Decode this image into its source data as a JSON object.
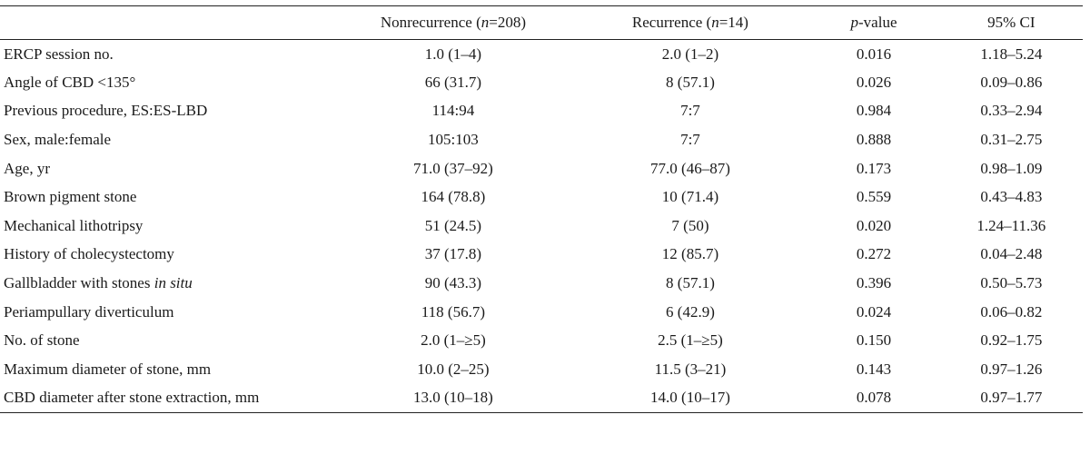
{
  "header": {
    "variable": "",
    "nonrecurrence": {
      "label": "Nonrecurrence (",
      "n_symbol": "n",
      "n_value": "=208)"
    },
    "recurrence": {
      "label": "Recurrence (",
      "n_symbol": "n",
      "n_value": "=14)"
    },
    "pvalue": {
      "p_symbol": "p",
      "suffix": "-value"
    },
    "ci": "95% CI"
  },
  "rows": [
    {
      "variable": "ERCP session no.",
      "variable_italic": "",
      "nonrecurrence": "1.0 (1–4)",
      "recurrence": "2.0 (1–2)",
      "pvalue": "0.016",
      "ci": "1.18–5.24"
    },
    {
      "variable": "Angle of CBD <135°",
      "variable_italic": "",
      "nonrecurrence": "66 (31.7)",
      "recurrence": "8 (57.1)",
      "pvalue": "0.026",
      "ci": "0.09–0.86"
    },
    {
      "variable": "Previous procedure, ES:ES-LBD",
      "variable_italic": "",
      "nonrecurrence": "114:94",
      "recurrence": "7:7",
      "pvalue": "0.984",
      "ci": "0.33–2.94"
    },
    {
      "variable": "Sex, male:female",
      "variable_italic": "",
      "nonrecurrence": "105:103",
      "recurrence": "7:7",
      "pvalue": "0.888",
      "ci": "0.31–2.75"
    },
    {
      "variable": "Age, yr",
      "variable_italic": "",
      "nonrecurrence": "71.0 (37–92)",
      "recurrence": "77.0 (46–87)",
      "pvalue": "0.173",
      "ci": "0.98–1.09"
    },
    {
      "variable": "Brown pigment stone",
      "variable_italic": "",
      "nonrecurrence": "164 (78.8)",
      "recurrence": "10 (71.4)",
      "pvalue": "0.559",
      "ci": "0.43–4.83"
    },
    {
      "variable": "Mechanical lithotripsy",
      "variable_italic": "",
      "nonrecurrence": "51 (24.5)",
      "recurrence": "7 (50)",
      "pvalue": "0.020",
      "ci": "1.24–11.36"
    },
    {
      "variable": "History of cholecystectomy",
      "variable_italic": "",
      "nonrecurrence": "37 (17.8)",
      "recurrence": "12 (85.7)",
      "pvalue": "0.272",
      "ci": "0.04–2.48"
    },
    {
      "variable": "Gallbladder with stones ",
      "variable_italic": "in situ",
      "nonrecurrence": "90 (43.3)",
      "recurrence": "8 (57.1)",
      "pvalue": "0.396",
      "ci": "0.50–5.73"
    },
    {
      "variable": "Periampullary diverticulum",
      "variable_italic": "",
      "nonrecurrence": "118 (56.7)",
      "recurrence": "6 (42.9)",
      "pvalue": "0.024",
      "ci": "0.06–0.82"
    },
    {
      "variable": "No. of stone",
      "variable_italic": "",
      "nonrecurrence": "2.0 (1–≥5)",
      "recurrence": "2.5 (1–≥5)",
      "pvalue": "0.150",
      "ci": "0.92–1.75"
    },
    {
      "variable": "Maximum diameter of stone, mm",
      "variable_italic": "",
      "nonrecurrence": "10.0 (2–25)",
      "recurrence": "11.5 (3–21)",
      "pvalue": "0.143",
      "ci": "0.97–1.26"
    },
    {
      "variable": "CBD diameter after stone extraction, mm",
      "variable_italic": "",
      "nonrecurrence": "13.0 (10–18)",
      "recurrence": "14.0 (10–17)",
      "pvalue": "0.078",
      "ci": "0.97–1.77"
    }
  ]
}
